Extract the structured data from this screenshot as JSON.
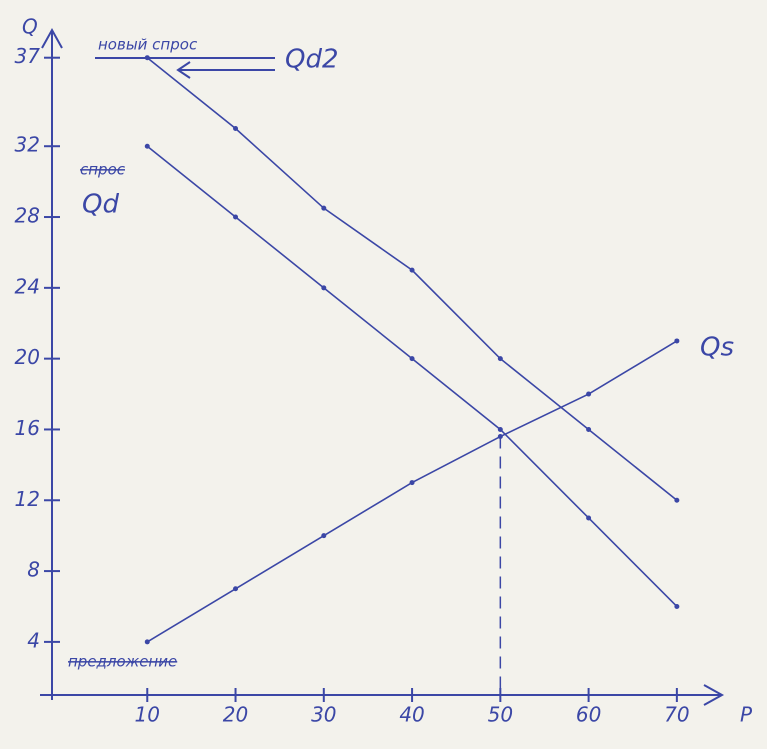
{
  "chart_data": {
    "type": "line",
    "x_label": "P",
    "y_label": "Q",
    "x": [
      10,
      20,
      30,
      40,
      50,
      60,
      70
    ],
    "xlim": [
      0,
      75
    ],
    "xticks": [
      10,
      20,
      30,
      40,
      50,
      60,
      70
    ],
    "ylim": [
      1,
      38
    ],
    "yticks": [
      4,
      8,
      12,
      16,
      20,
      24,
      28,
      32,
      37
    ],
    "series": [
      {
        "name": "Qd",
        "color": "#3b47a6",
        "values": [
          32,
          28,
          24,
          20,
          16,
          11,
          6
        ]
      },
      {
        "name": "Qd2",
        "color": "#3b47a6",
        "values": [
          37,
          33,
          28.5,
          25,
          20,
          16,
          12
        ]
      },
      {
        "name": "Qs",
        "color": "#3b47a6",
        "values": [
          4,
          7,
          10,
          13,
          15.6,
          18,
          21
        ]
      }
    ],
    "annotations": [
      "новый спрос",
      "спрос",
      "предложение"
    ]
  }
}
